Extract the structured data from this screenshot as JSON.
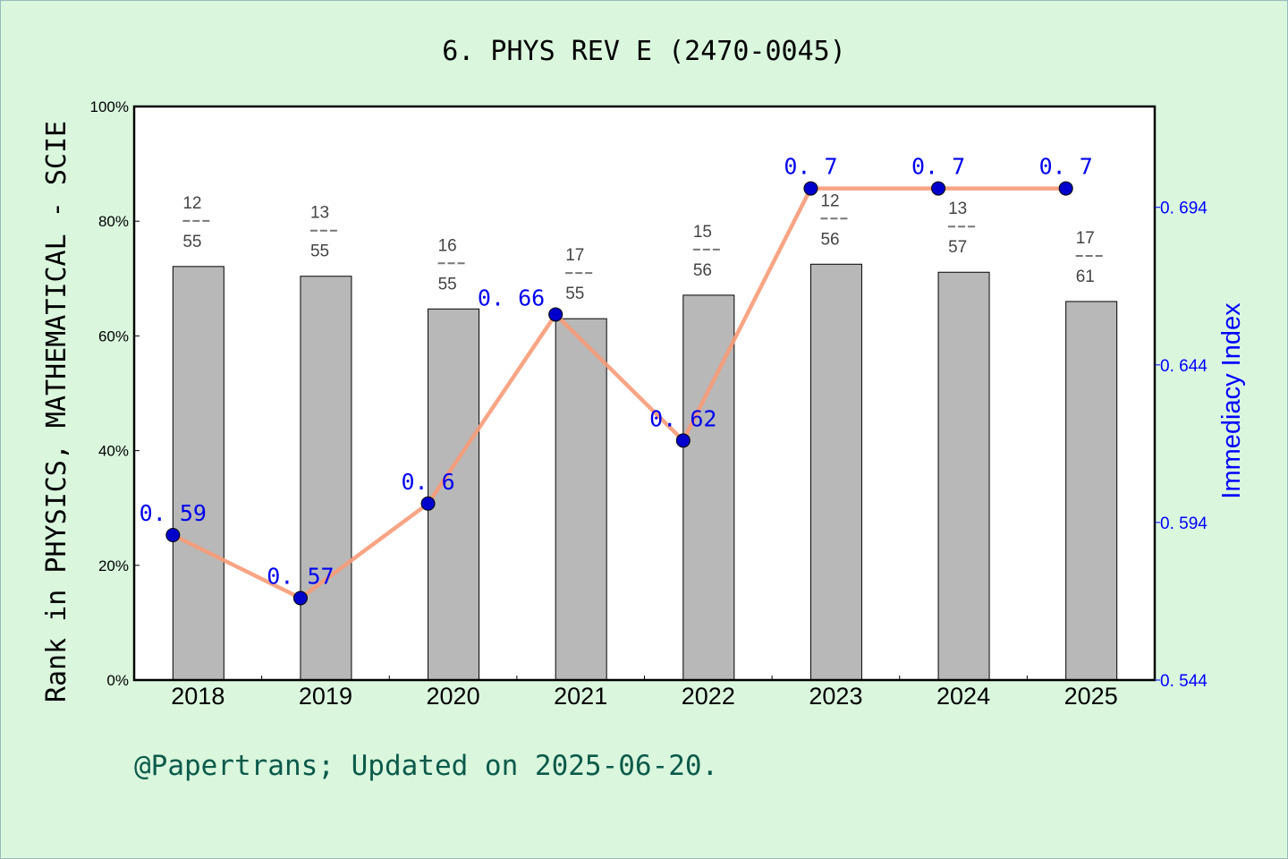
{
  "chart_data": {
    "type": "bar+line",
    "title": "6. PHYS REV E (2470-0045)",
    "categories": [
      "2018",
      "2019",
      "2020",
      "2021",
      "2022",
      "2023",
      "2024",
      "2025"
    ],
    "bar_series": {
      "values_percent": [
        72.1,
        70.4,
        64.7,
        63.0,
        67.1,
        72.5,
        71.1,
        66.0
      ],
      "rank_labels": [
        {
          "rank": "12",
          "total": "55"
        },
        {
          "rank": "13",
          "total": "55"
        },
        {
          "rank": "16",
          "total": "55"
        },
        {
          "rank": "17",
          "total": "55"
        },
        {
          "rank": "15",
          "total": "56"
        },
        {
          "rank": "12",
          "total": "56"
        },
        {
          "rank": "13",
          "total": "57"
        },
        {
          "rank": "17",
          "total": "61"
        }
      ],
      "color": "#b8b8b8"
    },
    "line_series": {
      "values": [
        0.59,
        0.57,
        0.6,
        0.66,
        0.62,
        0.7,
        0.7,
        0.7
      ],
      "labels": [
        "0. 59",
        "0. 57",
        "0. 6",
        "0. 66",
        "0. 62",
        "0. 7",
        "0. 7",
        "0. 7"
      ],
      "line_color": "#f79b78",
      "marker_color": "#0000cc"
    },
    "ylabel_left": "Rank in PHYSICS, MATHEMATICAL - SCIE",
    "ylabel_right": "Immediacy Index",
    "ylim_left": [
      0,
      100
    ],
    "yticks_left": [
      "0%",
      "20%",
      "40%",
      "60%",
      "80%",
      "100%"
    ],
    "ylim_right": [
      0.544,
      0.726
    ],
    "yticks_right": [
      "0. 544",
      "0. 594",
      "0. 644",
      "0. 694"
    ],
    "grid": false,
    "footer": "@Papertrans; Updated on 2025-06-20."
  }
}
